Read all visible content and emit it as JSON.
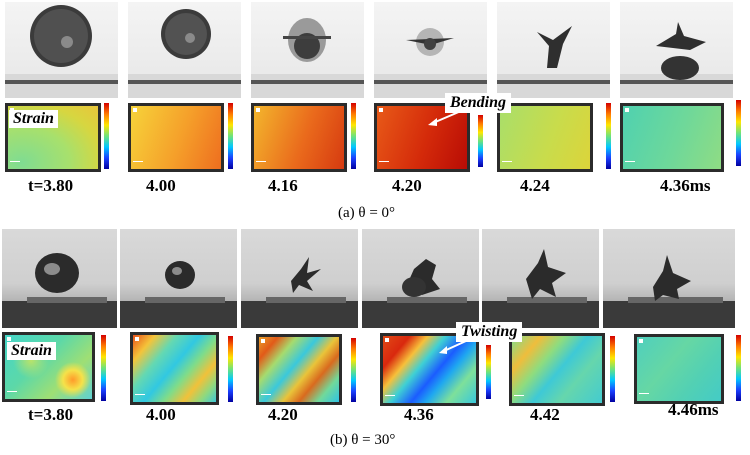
{
  "row_a": {
    "time_labels": [
      "t=3.80",
      "4.00",
      "4.16",
      "4.20",
      "4.24",
      "4.36ms"
    ],
    "strain_label": "Strain",
    "callout": "Bending",
    "caption": "(a) θ = 0°"
  },
  "row_b": {
    "time_labels": [
      "t=3.80",
      "4.00",
      "4.20",
      "4.36",
      "4.42",
      "4.46ms"
    ],
    "strain_label": "Strain",
    "callout": "Twisting",
    "caption": "(b) θ = 30°"
  },
  "colormap": [
    "#d40000",
    "#ff7a00",
    "#ffe600",
    "#6fe37a",
    "#00c8ff",
    "#1a40ff",
    "#0000a0"
  ]
}
